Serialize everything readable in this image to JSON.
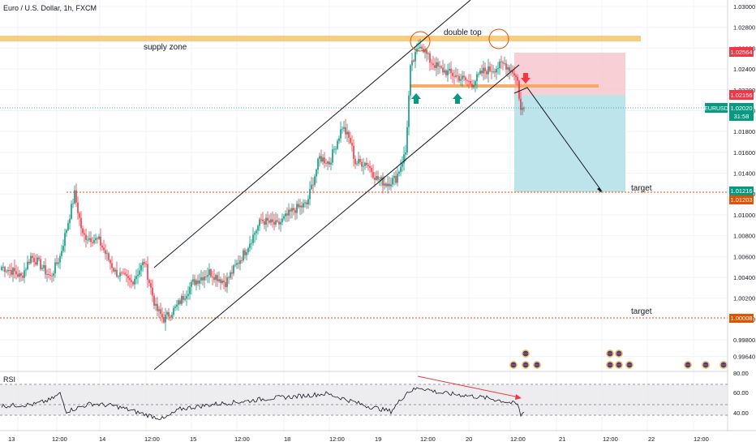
{
  "header": {
    "title": "Euro / U.S. Dollar, 1h, FXCM"
  },
  "annotations": {
    "supply_zone": "supply zone",
    "double_top": "double top",
    "target_upper": "target",
    "target_lower": "target"
  },
  "symbol_tag": "EURUSD",
  "countdown": "31:58",
  "price_axis": {
    "ticks": [
      "1.03000",
      "1.02800",
      "1.02600",
      "1.02400",
      "1.02200",
      "1.02000",
      "1.01800",
      "1.01600",
      "1.01400",
      "1.01200",
      "1.01000",
      "1.00800",
      "1.00600",
      "1.00400",
      "1.00200",
      "1.00000",
      "0.99800",
      "0.99640"
    ]
  },
  "price_labels": {
    "stop": "1.02564",
    "entry": "1.02156",
    "last": "1.02020",
    "target1_a": "1.01216",
    "target1_b": "1.01203",
    "target2": "1.00008"
  },
  "time_axis": {
    "labels": [
      "13",
      "12:00",
      "14",
      "12:00",
      "15",
      "12:00",
      "18",
      "12:00",
      "19",
      "12:00",
      "20",
      "12:00",
      "21",
      "12:00",
      "22",
      "12:00"
    ]
  },
  "rsi": {
    "label": "RSI",
    "ticks": [
      "80.00",
      "60.00",
      "40.00"
    ]
  },
  "colors": {
    "up": "#089981",
    "down": "#f23645",
    "supply": "#f7c46c",
    "neckline": "#f7a35c",
    "stop_zone": "#f7c7cc",
    "profit_zone": "#b2dfe6",
    "target_line": "#e65100",
    "label_red": "#f23645",
    "label_green": "#089981",
    "label_orange": "#e65100"
  },
  "chart_data": {
    "type": "candlestick",
    "title": "Euro / U.S. Dollar, 1h, FXCM",
    "ylim": [
      0.9958,
      1.0308
    ],
    "price_levels": {
      "supply_zone": 1.027,
      "neckline": 1.0225,
      "stop": 1.02564,
      "entry": 1.02156,
      "last": 1.0202,
      "target1": 1.01216,
      "target2": 1.00008
    },
    "waypoints_close": [
      [
        0,
        1.005
      ],
      [
        8,
        1.0045
      ],
      [
        12,
        1.004
      ],
      [
        18,
        1.006
      ],
      [
        22,
        1.0055
      ],
      [
        30,
        1.004
      ],
      [
        36,
        1.006
      ],
      [
        45,
        1.012
      ],
      [
        50,
        1.008
      ],
      [
        60,
        1.0075
      ],
      [
        70,
        1.0045
      ],
      [
        80,
        1.0035
      ],
      [
        88,
        1.0055
      ],
      [
        95,
        1.001
      ],
      [
        100,
        1.0
      ],
      [
        107,
        1.001
      ],
      [
        118,
        1.0035
      ],
      [
        128,
        1.0045
      ],
      [
        138,
        1.0035
      ],
      [
        150,
        1.0065
      ],
      [
        160,
        1.0095
      ],
      [
        170,
        1.009
      ],
      [
        180,
        1.0105
      ],
      [
        188,
        1.011
      ],
      [
        196,
        1.0155
      ],
      [
        202,
        1.015
      ],
      [
        210,
        1.0185
      ],
      [
        215,
        1.017
      ],
      [
        218,
        1.015
      ],
      [
        225,
        1.015
      ],
      [
        231,
        1.0135
      ],
      [
        237,
        1.013
      ],
      [
        243,
        1.0135
      ],
      [
        249,
        1.016
      ],
      [
        252,
        1.024
      ],
      [
        258,
        1.0265
      ],
      [
        264,
        1.0248
      ],
      [
        270,
        1.024
      ],
      [
        276,
        1.0236
      ],
      [
        282,
        1.0232
      ],
      [
        290,
        1.0226
      ],
      [
        297,
        1.0238
      ],
      [
        303,
        1.024
      ],
      [
        310,
        1.0245
      ],
      [
        316,
        1.0236
      ],
      [
        318,
        1.0228
      ],
      [
        320,
        1.02
      ],
      [
        322,
        1.0202
      ]
    ],
    "rsi_waypoints": [
      [
        0,
        52
      ],
      [
        20,
        54
      ],
      [
        30,
        60
      ],
      [
        36,
        68
      ],
      [
        40,
        45
      ],
      [
        55,
        55
      ],
      [
        70,
        52
      ],
      [
        90,
        40
      ],
      [
        100,
        35
      ],
      [
        110,
        48
      ],
      [
        130,
        54
      ],
      [
        150,
        58
      ],
      [
        165,
        62
      ],
      [
        180,
        64
      ],
      [
        200,
        68
      ],
      [
        210,
        62
      ],
      [
        225,
        52
      ],
      [
        240,
        45
      ],
      [
        250,
        70
      ],
      [
        258,
        76
      ],
      [
        270,
        69
      ],
      [
        285,
        66
      ],
      [
        300,
        62
      ],
      [
        310,
        58
      ],
      [
        318,
        54
      ],
      [
        320,
        40
      ],
      [
        322,
        44
      ]
    ]
  }
}
